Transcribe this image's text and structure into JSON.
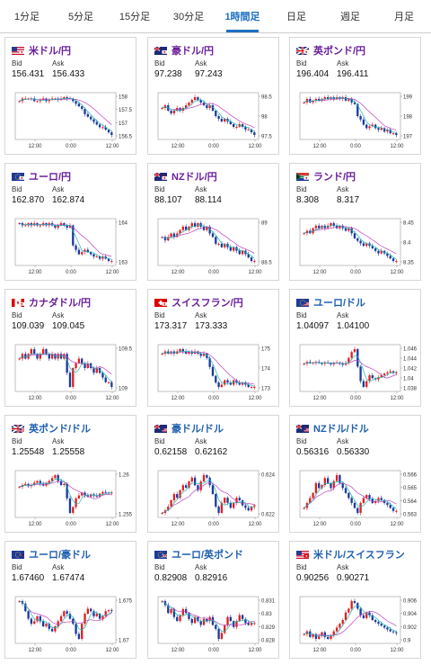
{
  "tabs": [
    {
      "label": "1分足",
      "active": false
    },
    {
      "label": "5分足",
      "active": false
    },
    {
      "label": "15分足",
      "active": false
    },
    {
      "label": "30分足",
      "active": false
    },
    {
      "label": "1時間足",
      "active": true
    },
    {
      "label": "日足",
      "active": false
    },
    {
      "label": "週足",
      "active": false
    },
    {
      "label": "月足",
      "active": false
    }
  ],
  "bid_label": "Bid",
  "ask_label": "Ask",
  "x_labels": [
    "12:00",
    "0:00",
    "12:00"
  ],
  "colors": {
    "up": "#e02020",
    "down": "#1a3a9c",
    "avg_fast": "#21b5b5",
    "avg_slow": "#c040c0",
    "title": "#6a1f9b",
    "title_alt": "#1f5fae"
  },
  "pairs": [
    {
      "name": "米ドル/円",
      "flag": "us-jp-flag",
      "bid": "156.431",
      "ask": "156.433",
      "y_ticks": [
        "158",
        "157.5",
        "157",
        "156.5"
      ],
      "series": [
        157.7,
        157.8,
        157.8,
        157.8,
        157.8,
        157.7,
        157.7,
        157.75,
        157.8,
        157.7,
        157.75,
        157.8,
        157.8,
        157.75,
        157.8,
        157.85,
        157.8,
        157.8,
        157.7,
        157.6,
        157.5,
        157.4,
        157.2,
        157.1,
        157.0,
        156.9,
        156.8,
        156.7,
        156.7,
        156.6,
        156.5,
        156.4
      ]
    },
    {
      "name": "豪ドル/円",
      "flag": "au-jp-flag",
      "bid": "97.238",
      "ask": "97.243",
      "y_ticks": [
        "98.5",
        "98",
        "97.5"
      ],
      "series": [
        98.2,
        98.3,
        98.1,
        98.0,
        98.1,
        98.2,
        98.1,
        98.2,
        98.3,
        98.4,
        98.5,
        98.6,
        98.5,
        98.4,
        98.3,
        98.2,
        98.3,
        98.1,
        97.9,
        97.8,
        97.7,
        97.8,
        97.7,
        97.6,
        97.5,
        97.5,
        97.6,
        97.5,
        97.4,
        97.4,
        97.3,
        97.2
      ]
    },
    {
      "name": "英ポンド/円",
      "flag": "gb-jp-flag",
      "bid": "196.404",
      "ask": "196.411",
      "y_ticks": [
        "199",
        "198",
        "197"
      ],
      "series": [
        198.3,
        198.5,
        198.3,
        198.4,
        198.5,
        198.4,
        198.5,
        198.6,
        198.5,
        198.6,
        198.5,
        198.6,
        198.5,
        198.6,
        198.4,
        198.5,
        198.3,
        198.2,
        197.5,
        197.3,
        197.0,
        196.8,
        196.9,
        197.0,
        196.8,
        196.7,
        196.8,
        196.6,
        196.7,
        196.5,
        196.5,
        196.4
      ]
    },
    {
      "name": "ユーロ/円",
      "flag": "eu-jp-flag",
      "bid": "162.870",
      "ask": "162.874",
      "y_ticks": [
        "164",
        "163"
      ],
      "series": [
        164.6,
        164.5,
        164.5,
        164.6,
        164.5,
        164.6,
        164.5,
        164.5,
        164.6,
        164.5,
        164.6,
        164.5,
        164.4,
        164.5,
        164.6,
        164.5,
        164.4,
        164.5,
        163.6,
        163.4,
        163.2,
        163.3,
        163.4,
        163.3,
        163.2,
        163.1,
        163.1,
        163.0,
        163.1,
        163.0,
        162.9,
        162.9
      ]
    },
    {
      "name": "NZドル/円",
      "flag": "nz-jp-flag",
      "bid": "88.107",
      "ask": "88.114",
      "y_ticks": [
        "89",
        "88.5"
      ],
      "series": [
        88.8,
        88.7,
        88.8,
        88.9,
        88.8,
        88.9,
        89.0,
        89.1,
        89.0,
        89.1,
        89.2,
        89.1,
        89.2,
        89.1,
        89.0,
        89.1,
        88.9,
        88.8,
        88.6,
        88.6,
        88.5,
        88.6,
        88.5,
        88.4,
        88.5,
        88.4,
        88.3,
        88.4,
        88.3,
        88.2,
        88.1,
        88.1
      ]
    },
    {
      "name": "ランド/円",
      "flag": "za-jp-flag",
      "bid": "8.308",
      "ask": "8.317",
      "y_ticks": [
        "8.45",
        "8.4",
        "8.35"
      ],
      "series": [
        8.42,
        8.43,
        8.42,
        8.44,
        8.45,
        8.44,
        8.45,
        8.44,
        8.45,
        8.46,
        8.45,
        8.44,
        8.45,
        8.44,
        8.43,
        8.44,
        8.42,
        8.4,
        8.39,
        8.38,
        8.37,
        8.38,
        8.37,
        8.36,
        8.35,
        8.34,
        8.35,
        8.34,
        8.33,
        8.32,
        8.31,
        8.31
      ]
    },
    {
      "name": "カナダドル/円",
      "flag": "ca-jp-flag",
      "bid": "109.039",
      "ask": "109.045",
      "y_ticks": [
        "109.5",
        "109"
      ],
      "series": [
        109.6,
        109.7,
        109.6,
        109.7,
        109.8,
        109.7,
        109.6,
        109.7,
        109.8,
        109.7,
        109.6,
        109.7,
        109.6,
        109.7,
        109.6,
        109.7,
        109.3,
        109.0,
        109.4,
        109.5,
        109.6,
        109.5,
        109.4,
        109.5,
        109.4,
        109.3,
        109.4,
        109.3,
        109.2,
        109.1,
        109.1,
        109.0
      ]
    },
    {
      "name": "スイスフラン/円",
      "flag": "ch-jp-flag",
      "bid": "173.317",
      "ask": "173.333",
      "y_ticks": [
        "175",
        "174",
        "173"
      ],
      "series": [
        174.8,
        174.9,
        174.8,
        174.9,
        174.8,
        174.9,
        175.0,
        174.9,
        174.8,
        174.9,
        174.8,
        174.9,
        174.8,
        174.7,
        174.8,
        174.6,
        174.2,
        173.8,
        173.5,
        173.3,
        173.4,
        173.6,
        173.5,
        173.4,
        173.6,
        173.5,
        173.4,
        173.5,
        173.4,
        173.3,
        173.3,
        173.3
      ]
    },
    {
      "name": "ユーロ/ドル",
      "flag": "eu-us-flag",
      "bid": "1.04097",
      "ask": "1.04100",
      "y_ticks": [
        "1.046",
        "1.044",
        "1.042",
        "1.04",
        "1.038"
      ],
      "series": [
        1.0425,
        1.0428,
        1.0426,
        1.0427,
        1.0428,
        1.0426,
        1.0425,
        1.0427,
        1.0426,
        1.0424,
        1.0426,
        1.0427,
        1.0425,
        1.0423,
        1.0426,
        1.0435,
        1.0445,
        1.045,
        1.042,
        1.0395,
        1.0385,
        1.0395,
        1.0405,
        1.04,
        1.0398,
        1.0402,
        1.0405,
        1.0408,
        1.041,
        1.0412,
        1.0409,
        1.041
      ]
    },
    {
      "name": "英ポンド/ドル",
      "flag": "gb-us-flag",
      "bid": "1.25548",
      "ask": "1.25558",
      "y_ticks": [
        "1.26",
        "1.255"
      ],
      "series": [
        1.2565,
        1.2568,
        1.257,
        1.2566,
        1.2568,
        1.2572,
        1.2575,
        1.257,
        1.2567,
        1.2572,
        1.2575,
        1.258,
        1.2585,
        1.2575,
        1.2568,
        1.257,
        1.2545,
        1.252,
        1.253,
        1.2545,
        1.255,
        1.2555,
        1.255,
        1.2548,
        1.2552,
        1.255,
        1.2548,
        1.2553,
        1.2556,
        1.2555,
        1.2554,
        1.2555
      ]
    },
    {
      "name": "豪ドル/ドル",
      "flag": "au-us-flag",
      "bid": "0.62158",
      "ask": "0.62162",
      "y_ticks": [
        "0.624",
        "0.622"
      ],
      "series": [
        0.621,
        0.6212,
        0.6215,
        0.622,
        0.6225,
        0.6222,
        0.6228,
        0.6232,
        0.623,
        0.6235,
        0.6238,
        0.6232,
        0.6228,
        0.6235,
        0.624,
        0.6238,
        0.6232,
        0.6225,
        0.6215,
        0.621,
        0.6218,
        0.6222,
        0.6218,
        0.6214,
        0.6218,
        0.6222,
        0.622,
        0.6216,
        0.6214,
        0.6212,
        0.6215,
        0.6216
      ]
    },
    {
      "name": "NZドル/ドル",
      "flag": "nz-us-flag",
      "bid": "0.56316",
      "ask": "0.56330",
      "y_ticks": [
        "0.566",
        "0.565",
        "0.564",
        "0.563"
      ],
      "series": [
        0.5635,
        0.564,
        0.5645,
        0.565,
        0.566,
        0.5655,
        0.5658,
        0.5665,
        0.566,
        0.5655,
        0.5662,
        0.5668,
        0.566,
        0.5655,
        0.565,
        0.5645,
        0.564,
        0.5635,
        0.563,
        0.564,
        0.5645,
        0.5648,
        0.5644,
        0.564,
        0.5642,
        0.5645,
        0.5643,
        0.564,
        0.5638,
        0.5635,
        0.5632,
        0.5632
      ]
    },
    {
      "name": "ユーロ/豪ドル",
      "flag": "eu-au-flag",
      "bid": "1.67460",
      "ask": "1.67474",
      "y_ticks": [
        "1.675",
        "1.67"
      ],
      "series": [
        1.6765,
        1.676,
        1.6745,
        1.673,
        1.672,
        1.6725,
        1.6735,
        1.6725,
        1.6715,
        1.672,
        1.671,
        1.6705,
        1.6715,
        1.6725,
        1.6735,
        1.6745,
        1.674,
        1.673,
        1.672,
        1.67,
        1.669,
        1.672,
        1.674,
        1.675,
        1.6745,
        1.6735,
        1.674,
        1.673,
        1.6735,
        1.6745,
        1.6747,
        1.6746
      ]
    },
    {
      "name": "ユーロ/英ポンド",
      "flag": "eu-gb-flag",
      "bid": "0.82908",
      "ask": "0.82916",
      "y_ticks": [
        "0.831",
        "0.83",
        "0.829",
        "0.828"
      ],
      "series": [
        0.8302,
        0.83,
        0.8296,
        0.8298,
        0.8294,
        0.8292,
        0.8295,
        0.8298,
        0.8296,
        0.8293,
        0.8291,
        0.8294,
        0.8292,
        0.829,
        0.8293,
        0.8292,
        0.8294,
        0.829,
        0.8288,
        0.8283,
        0.8286,
        0.829,
        0.8294,
        0.8292,
        0.8289,
        0.8292,
        0.8295,
        0.8293,
        0.8291,
        0.829,
        0.8291,
        0.8291
      ]
    },
    {
      "name": "米ドル/スイスフラン",
      "flag": "us-ch-flag",
      "bid": "0.90256",
      "ask": "0.90271",
      "y_ticks": [
        "0.906",
        "0.904",
        "0.902",
        "0.9"
      ],
      "series": [
        0.9025,
        0.9028,
        0.9022,
        0.9025,
        0.902,
        0.9023,
        0.9027,
        0.9022,
        0.902,
        0.9024,
        0.9028,
        0.9032,
        0.9036,
        0.904,
        0.9048,
        0.9052,
        0.906,
        0.9058,
        0.9052,
        0.9045,
        0.9042,
        0.9048,
        0.9045,
        0.904,
        0.9038,
        0.9036,
        0.9034,
        0.9032,
        0.903,
        0.9028,
        0.9027,
        0.9026
      ]
    }
  ]
}
